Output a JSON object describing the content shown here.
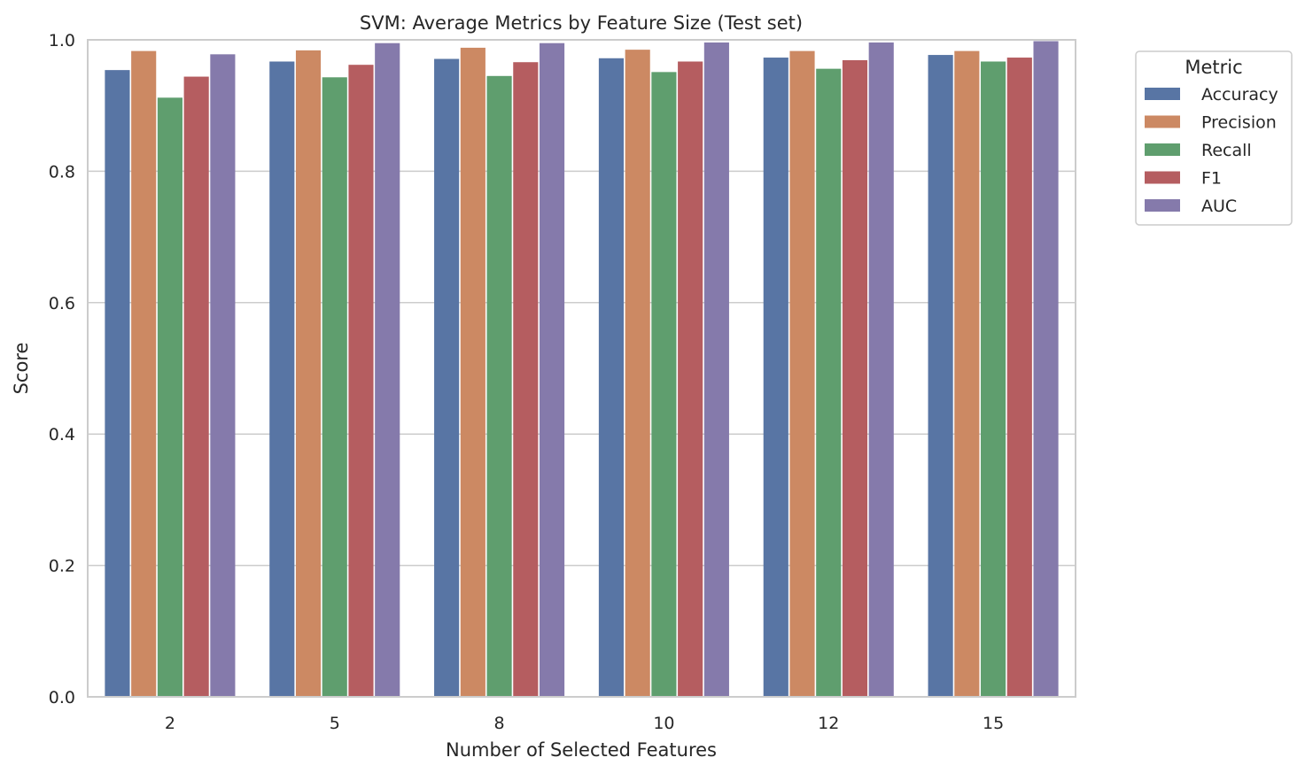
{
  "chart_data": {
    "type": "bar",
    "title": "SVM: Average Metrics by Feature Size (Test set)",
    "xlabel": "Number of Selected Features",
    "ylabel": "Score",
    "ylim": [
      0,
      1.0
    ],
    "yticks": [
      "0.0",
      "0.2",
      "0.4",
      "0.6",
      "0.8",
      "1.0"
    ],
    "categories": [
      "2",
      "5",
      "8",
      "10",
      "12",
      "15"
    ],
    "grid": "horizontal",
    "legend": {
      "title": "Metric",
      "placement": "outside-top-right"
    },
    "series": [
      {
        "name": "Accuracy",
        "color": "#5875a4",
        "values": [
          0.954,
          0.967,
          0.971,
          0.972,
          0.973,
          0.977
        ]
      },
      {
        "name": "Precision",
        "color": "#cc8963",
        "values": [
          0.983,
          0.984,
          0.988,
          0.985,
          0.983,
          0.983
        ]
      },
      {
        "name": "Recall",
        "color": "#5f9e6e",
        "values": [
          0.912,
          0.943,
          0.945,
          0.951,
          0.956,
          0.967
        ]
      },
      {
        "name": "F1",
        "color": "#b55d60",
        "values": [
          0.944,
          0.962,
          0.966,
          0.967,
          0.969,
          0.973
        ]
      },
      {
        "name": "AUC",
        "color": "#857aab",
        "values": [
          0.978,
          0.995,
          0.995,
          0.996,
          0.996,
          0.998
        ]
      }
    ]
  }
}
